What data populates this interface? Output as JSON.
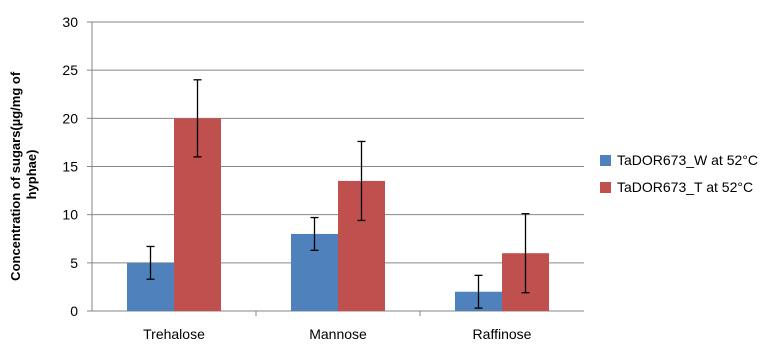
{
  "chart_data": {
    "type": "bar",
    "title": "",
    "xlabel": "",
    "ylabel": [
      "Concentration of sugars(µg/mg of",
      "hyphae)"
    ],
    "categories": [
      "Trehalose",
      "Mannose",
      "Raffinose"
    ],
    "ylim": [
      0,
      30
    ],
    "yticks": [
      0,
      5,
      10,
      15,
      20,
      25,
      30
    ],
    "grid": "horizontal",
    "legend_position": "right",
    "series": [
      {
        "name": "TaDOR673_W at 52°C",
        "color": "#4F81BD",
        "values": [
          5,
          8,
          2
        ],
        "error": [
          1.7,
          1.7,
          1.7
        ]
      },
      {
        "name": "TaDOR673_T at 52°C",
        "color": "#C0504D",
        "values": [
          20,
          13.5,
          6
        ],
        "error": [
          4,
          4.1,
          4.1
        ]
      }
    ]
  }
}
